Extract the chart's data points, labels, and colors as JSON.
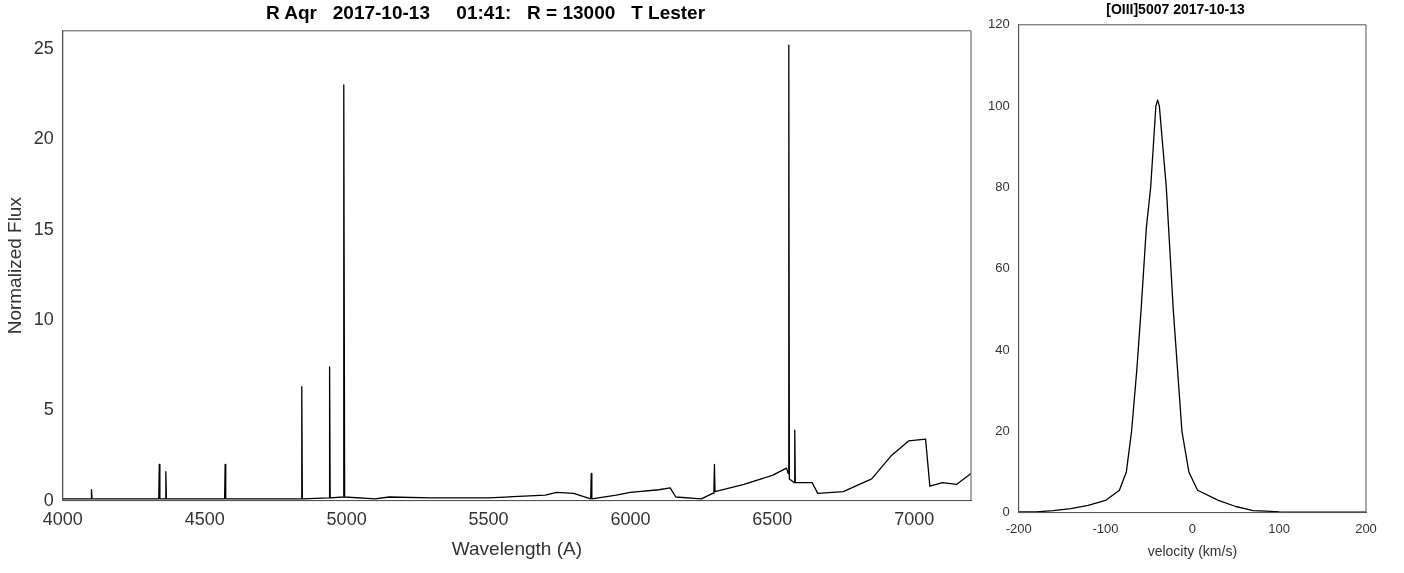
{
  "chart_data": [
    {
      "type": "line",
      "title": "R Aqr   2017-10-13     01:41:   R = 13000   T Lester",
      "xlabel": "Wavelength (A)",
      "ylabel": "Normalized Flux",
      "xlim": [
        4000,
        7200
      ],
      "xticks": [
        4000,
        4500,
        5000,
        5500,
        6000,
        6500,
        7000
      ],
      "ylim": [
        0,
        26
      ],
      "yticks": [
        0,
        5,
        10,
        15,
        20,
        25
      ],
      "grid": false,
      "legend": false,
      "marker": "none",
      "line_style": "solid",
      "series": [
        {
          "color": "#000000",
          "x": [
            4000,
            4100,
            4101,
            4103,
            4300,
            4338,
            4340,
            4342,
            4361,
            4363,
            4365,
            4500,
            4570,
            4572,
            4574,
            4700,
            4840,
            4842,
            4844,
            4938,
            4940,
            4942,
            4988,
            4990,
            4993,
            5100,
            5150,
            5300,
            5500,
            5700,
            5740,
            5800,
            5860,
            5862,
            5864,
            5950,
            6000,
            6100,
            6140,
            6160,
            6250,
            6290,
            6294,
            6296,
            6298,
            6400,
            6500,
            6550,
            6556,
            6558,
            6560,
            6577,
            6579,
            6581,
            6640,
            6660,
            6750,
            6850,
            6920,
            6980,
            7040,
            7055,
            7100,
            7150,
            7200
          ],
          "values": [
            0.1,
            0.1,
            0.6,
            0.1,
            0.1,
            0.1,
            2.0,
            0.1,
            0.1,
            1.6,
            0.1,
            0.1,
            0.1,
            2.0,
            0.1,
            0.1,
            0.1,
            6.3,
            0.1,
            0.15,
            7.4,
            0.15,
            0.2,
            23.0,
            0.2,
            0.1,
            0.2,
            0.15,
            0.15,
            0.3,
            0.45,
            0.4,
            0.1,
            1.5,
            0.1,
            0.3,
            0.45,
            0.6,
            0.7,
            0.2,
            0.1,
            0.4,
            0.4,
            2.0,
            0.5,
            0.9,
            1.4,
            1.8,
            1.5,
            25.2,
            1.2,
            1.0,
            3.9,
            1.0,
            1.0,
            0.4,
            0.5,
            1.2,
            2.5,
            3.3,
            3.4,
            0.8,
            1.0,
            0.9,
            1.5
          ]
        }
      ]
    },
    {
      "type": "line",
      "title": "[OIII]5007 2017-10-13",
      "xlabel": "velocity (km/s)",
      "xlim": [
        -200,
        200
      ],
      "xticks": [
        -200,
        -100,
        0,
        100,
        200
      ],
      "ylim": [
        0,
        120
      ],
      "yticks": [
        0,
        20,
        40,
        60,
        80,
        100,
        120
      ],
      "grid": false,
      "legend": false,
      "marker": "none",
      "line_style": "solid",
      "series": [
        {
          "color": "#000000",
          "x": [
            -200,
            -180,
            -160,
            -140,
            -120,
            -100,
            -84,
            -76,
            -70,
            -64,
            -59,
            -53,
            -48,
            -45,
            -42,
            -40,
            -38,
            -34,
            -30,
            -26,
            -22,
            -17,
            -12,
            -4,
            6,
            30,
            50,
            70,
            100,
            150,
            200
          ],
          "values": [
            0.2,
            0.2,
            0.5,
            1.0,
            1.8,
            3,
            5.5,
            10,
            20,
            35,
            50,
            70,
            80,
            90,
            100,
            101.5,
            100,
            90,
            80,
            65,
            50,
            35,
            20,
            10,
            5.5,
            3,
            1.5,
            0.5,
            0.2,
            0.1,
            0.1
          ]
        }
      ]
    }
  ]
}
